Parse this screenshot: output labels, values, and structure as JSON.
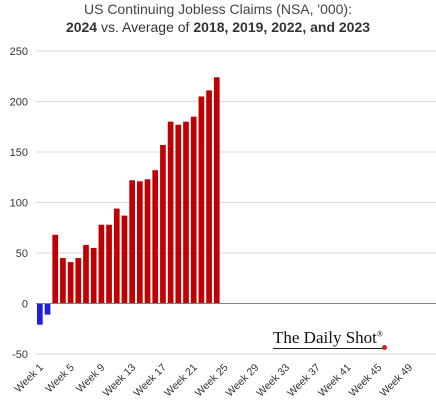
{
  "title": {
    "line1": "US Continuing Jobless Claims (NSA, '000):",
    "line2_part1": "2024",
    "line2_part2": " vs. Average of ",
    "line2_part3": "2018, 2019, 2022, and 2023"
  },
  "watermark": {
    "text": "The Daily Shot",
    "symbol": "®"
  },
  "colors": {
    "positive": "#c00000",
    "negative": "#1f1fe0",
    "grid": "#d9d9d9",
    "zero_line": "#808080"
  },
  "chart_data": {
    "type": "bar",
    "title": "US Continuing Jobless Claims (NSA, '000): 2024 vs. Average of 2018, 2019, 2022, and 2023",
    "xlabel": "",
    "ylabel": "",
    "ylim": [
      -50,
      250
    ],
    "yticks": [
      -50,
      0,
      50,
      100,
      150,
      200,
      250
    ],
    "grid": true,
    "legend": "none",
    "week_count": 52,
    "xtick_labels": [
      "Week 1",
      "Week 5",
      "Week 9",
      "Week 13",
      "Week 17",
      "Week 21",
      "Week 25",
      "Week 29",
      "Week 33",
      "Week 37",
      "Week 41",
      "Week 45",
      "Week 49"
    ],
    "xtick_weeks": [
      1,
      5,
      9,
      13,
      17,
      21,
      25,
      29,
      33,
      37,
      41,
      45,
      49
    ],
    "weeks": [
      1,
      2,
      3,
      4,
      5,
      6,
      7,
      8,
      9,
      10,
      11,
      12,
      13,
      14,
      15,
      16,
      17,
      18,
      19,
      20,
      21,
      22,
      23,
      24,
      25
    ],
    "values": [
      -21,
      -11,
      68,
      45,
      41,
      45,
      58,
      55,
      78,
      78,
      94,
      87,
      122,
      121,
      123,
      132,
      157,
      180,
      177,
      180,
      185,
      205,
      211,
      224,
      0
    ]
  }
}
